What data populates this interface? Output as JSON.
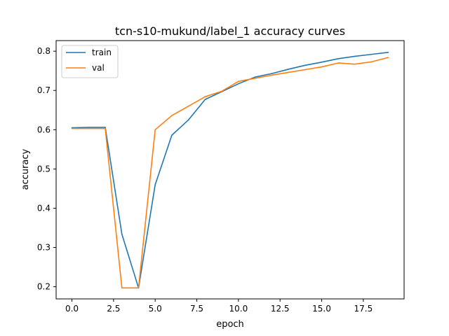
{
  "chart_data": {
    "type": "line",
    "title": "tcn-s10-mukund/label_1 accuracy curves",
    "xlabel": "epoch",
    "ylabel": "accuracy",
    "xlim": [
      -0.95,
      19.95
    ],
    "ylim": [
      0.169,
      0.827
    ],
    "xticks": [
      0.0,
      2.5,
      5.0,
      7.5,
      10.0,
      12.5,
      15.0,
      17.5
    ],
    "xtick_labels": [
      "0.0",
      "2.5",
      "5.0",
      "7.5",
      "10.0",
      "12.5",
      "15.0",
      "17.5"
    ],
    "yticks": [
      0.2,
      0.3,
      0.4,
      0.5,
      0.6,
      0.7,
      0.8
    ],
    "ytick_labels": [
      "0.2",
      "0.3",
      "0.4",
      "0.5",
      "0.6",
      "0.7",
      "0.8"
    ],
    "grid": false,
    "legend_position": "top-left",
    "x": [
      0,
      1,
      2,
      3,
      4,
      5,
      6,
      7,
      8,
      9,
      10,
      11,
      12,
      13,
      14,
      15,
      16,
      17,
      18,
      19
    ],
    "series": [
      {
        "name": "train",
        "color": "#1f77b4",
        "values": [
          0.605,
          0.606,
          0.606,
          0.334,
          0.197,
          0.46,
          0.586,
          0.625,
          0.677,
          0.697,
          0.717,
          0.734,
          0.743,
          0.754,
          0.764,
          0.772,
          0.781,
          0.787,
          0.792,
          0.797
        ]
      },
      {
        "name": "val",
        "color": "#ff7f0e",
        "values": [
          0.603,
          0.603,
          0.603,
          0.197,
          0.197,
          0.6,
          0.636,
          0.66,
          0.684,
          0.698,
          0.723,
          0.731,
          0.739,
          0.746,
          0.753,
          0.76,
          0.77,
          0.767,
          0.773,
          0.784
        ]
      }
    ]
  }
}
